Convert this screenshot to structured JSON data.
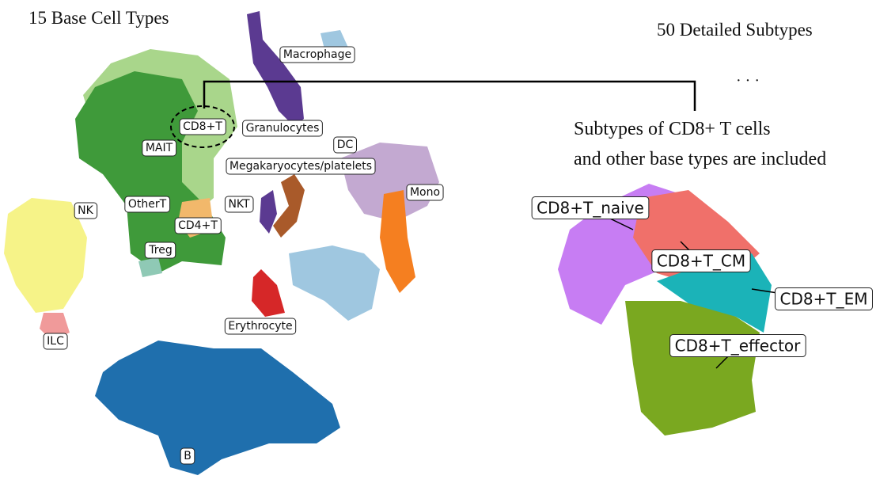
{
  "left_panel": {
    "title": "15 Base Cell Types",
    "labels": [
      "Macrophage",
      "CD8+T",
      "Granulocytes",
      "MAIT",
      "DC",
      "Megakaryocytes/platelets",
      "Mono",
      "NK",
      "OtherT",
      "NKT",
      "CD4+T",
      "Treg",
      "Erythrocyte",
      "ILC",
      "B"
    ]
  },
  "right_panel": {
    "title": "50 Detailed Subtypes",
    "ellipsis": "· · ·",
    "caption": [
      "Subtypes of CD8+ T cells",
      "and other base types are included"
    ],
    "labels": [
      "CD8+T_naive",
      "CD8+T_CM",
      "CD8+T_EM",
      "CD8+T_effector"
    ]
  }
}
